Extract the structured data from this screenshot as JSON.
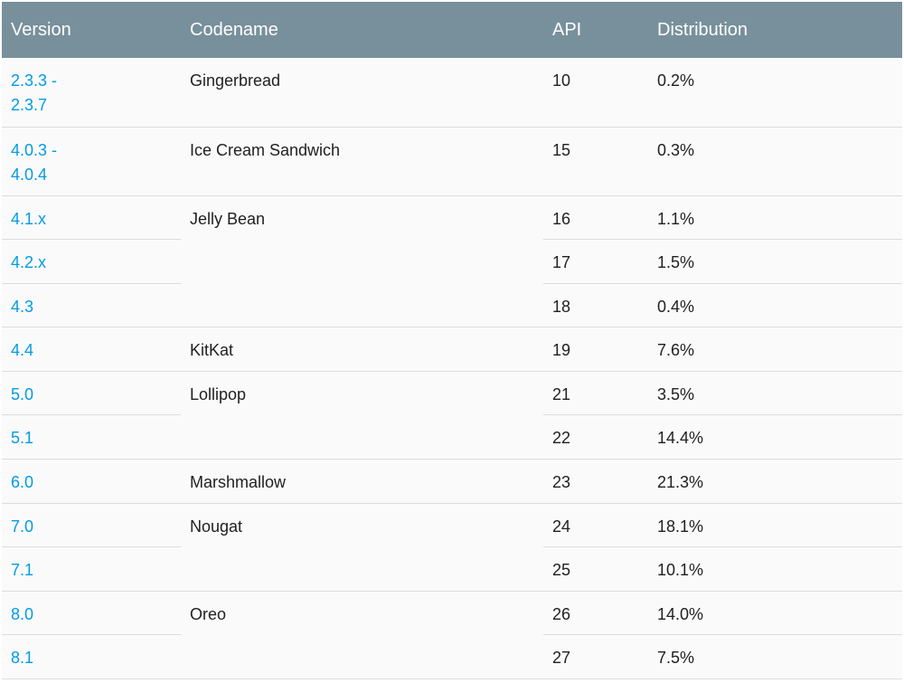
{
  "header": {
    "version": "Version",
    "codename": "Codename",
    "api": "API",
    "distribution": "Distribution"
  },
  "colors": {
    "header_bg": "#78909c",
    "link": "#039be5"
  },
  "rows": [
    {
      "version": "2.3.3 - 2.3.7",
      "codename": "Gingerbread",
      "api": "10",
      "distribution": "0.2%"
    },
    {
      "version": "4.0.3 - 4.0.4",
      "codename": "Ice Cream Sandwich",
      "api": "15",
      "distribution": "0.3%"
    },
    {
      "version": "4.1.x",
      "codename": "Jelly Bean",
      "api": "16",
      "distribution": "1.1%"
    },
    {
      "version": "4.2.x",
      "codename": "",
      "api": "17",
      "distribution": "1.5%"
    },
    {
      "version": "4.3",
      "codename": "",
      "api": "18",
      "distribution": "0.4%"
    },
    {
      "version": "4.4",
      "codename": "KitKat",
      "api": "19",
      "distribution": "7.6%"
    },
    {
      "version": "5.0",
      "codename": "Lollipop",
      "api": "21",
      "distribution": "3.5%"
    },
    {
      "version": "5.1",
      "codename": "",
      "api": "22",
      "distribution": "14.4%"
    },
    {
      "version": "6.0",
      "codename": "Marshmallow",
      "api": "23",
      "distribution": "21.3%"
    },
    {
      "version": "7.0",
      "codename": "Nougat",
      "api": "24",
      "distribution": "18.1%"
    },
    {
      "version": "7.1",
      "codename": "",
      "api": "25",
      "distribution": "10.1%"
    },
    {
      "version": "8.0",
      "codename": "Oreo",
      "api": "26",
      "distribution": "14.0%"
    },
    {
      "version": "8.1",
      "codename": "",
      "api": "27",
      "distribution": "7.5%"
    }
  ]
}
